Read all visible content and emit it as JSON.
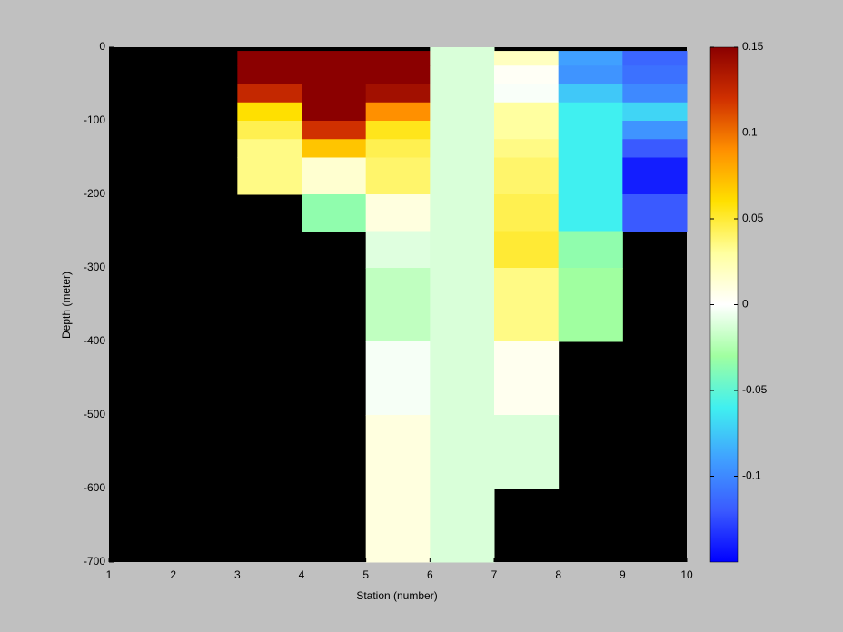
{
  "chart_data": {
    "type": "heatmap",
    "xlabel": "Station (number)",
    "ylabel": "Depth (meter)",
    "x_edges": [
      1,
      2,
      3,
      4,
      5,
      6,
      7,
      8,
      9,
      10
    ],
    "y_edges": [
      0,
      -5,
      -25,
      -50,
      -75,
      -100,
      -125,
      -150,
      -200,
      -250,
      -300,
      -400,
      -500,
      -600,
      -700
    ],
    "values": [
      [
        null,
        null,
        null,
        null,
        null,
        -0.012,
        null,
        null,
        null
      ],
      [
        null,
        null,
        0.15,
        0.15,
        0.15,
        -0.012,
        0.02,
        -0.09,
        -0.115
      ],
      [
        null,
        null,
        0.15,
        0.15,
        0.15,
        -0.012,
        0.003,
        -0.095,
        -0.11
      ],
      [
        null,
        null,
        0.125,
        0.15,
        0.14,
        -0.012,
        -0.002,
        -0.075,
        -0.1
      ],
      [
        null,
        null,
        0.06,
        0.15,
        0.09,
        -0.012,
        0.03,
        -0.06,
        -0.07
      ],
      [
        null,
        null,
        0.045,
        0.12,
        0.055,
        -0.012,
        0.03,
        -0.06,
        -0.095
      ],
      [
        null,
        null,
        0.035,
        0.07,
        0.045,
        -0.012,
        0.035,
        -0.06,
        -0.12
      ],
      [
        null,
        null,
        0.035,
        0.015,
        0.04,
        -0.012,
        0.04,
        -0.06,
        -0.14
      ],
      [
        null,
        null,
        null,
        -0.035,
        0.01,
        -0.012,
        0.045,
        -0.06,
        -0.12
      ],
      [
        null,
        null,
        null,
        null,
        -0.01,
        -0.012,
        0.05,
        -0.035,
        null
      ],
      [
        null,
        null,
        null,
        null,
        -0.02,
        -0.012,
        0.035,
        -0.03,
        null
      ],
      [
        null,
        null,
        null,
        null,
        -0.003,
        -0.012,
        0.005,
        null,
        null
      ],
      [
        null,
        null,
        null,
        null,
        0.01,
        -0.012,
        -0.012,
        null,
        null
      ],
      [
        null,
        null,
        null,
        null,
        0.01,
        -0.012,
        null,
        null,
        null
      ]
    ],
    "xlim": [
      1,
      10
    ],
    "xticks": [
      1,
      2,
      3,
      4,
      5,
      6,
      7,
      8,
      9,
      10
    ],
    "ylim": [
      -700,
      0
    ],
    "yticks": [
      0,
      -100,
      -200,
      -300,
      -400,
      -500,
      -600,
      -700
    ],
    "clim": [
      -0.15,
      0.15
    ],
    "cticks": [
      -0.1,
      -0.05,
      0,
      0.05,
      0.1,
      0.15
    ],
    "colormap": [
      "#0000ff",
      "#3a5aff",
      "#40a0ff",
      "#40f0f0",
      "#a0ffa0",
      "#ffffff",
      "#ffffa0",
      "#ffe000",
      "#ff9000",
      "#d03000",
      "#8b0000"
    ],
    "missing_color": "#000000",
    "grid": false
  }
}
